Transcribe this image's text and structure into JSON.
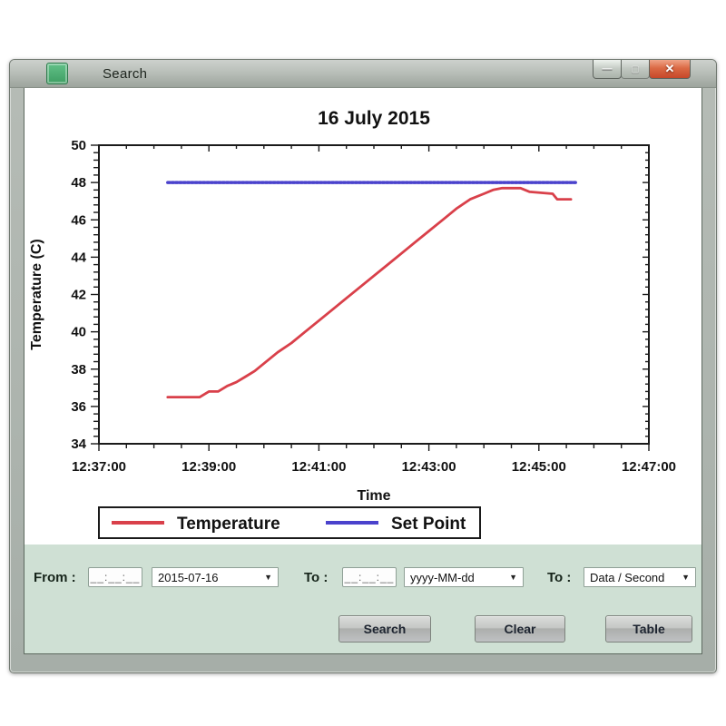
{
  "window": {
    "title": "Search"
  },
  "icons": {
    "minimize": "—",
    "maximize": "▢",
    "close": "✕",
    "dropdown_arrow": "▼"
  },
  "colors": {
    "window_bg": "#cfe0d4",
    "temperature_line": "#d9404a",
    "set_point_line": "#4a42cc",
    "close_button": "#c64729"
  },
  "chart_data": {
    "type": "line",
    "title": "16 July 2015",
    "xlabel": "Time",
    "ylabel": "Temperature (C)",
    "ylim": [
      34,
      50
    ],
    "y_tick_step": 2,
    "y_minor_step": 0.4,
    "x_range": [
      "12:37:00",
      "12:47:00"
    ],
    "x_ticks": [
      "12:37:00",
      "12:39:00",
      "12:41:00",
      "12:43:00",
      "12:45:00",
      "12:47:00"
    ],
    "x_minor_step_sec": 30,
    "grid": false,
    "legend_position": "bottom",
    "series": [
      {
        "name": "Temperature",
        "color": "#d9404a",
        "style": "solid",
        "points": [
          [
            "12:38:15",
            36.5
          ],
          [
            "12:38:50",
            36.5
          ],
          [
            "12:39:00",
            36.8
          ],
          [
            "12:39:10",
            36.8
          ],
          [
            "12:39:20",
            37.1
          ],
          [
            "12:39:30",
            37.3
          ],
          [
            "12:39:40",
            37.6
          ],
          [
            "12:39:50",
            37.9
          ],
          [
            "12:40:00",
            38.3
          ],
          [
            "12:40:15",
            38.9
          ],
          [
            "12:40:30",
            39.4
          ],
          [
            "12:40:45",
            40.0
          ],
          [
            "12:41:00",
            40.6
          ],
          [
            "12:41:15",
            41.2
          ],
          [
            "12:41:30",
            41.8
          ],
          [
            "12:41:45",
            42.4
          ],
          [
            "12:42:00",
            43.0
          ],
          [
            "12:42:15",
            43.6
          ],
          [
            "12:42:30",
            44.2
          ],
          [
            "12:42:45",
            44.8
          ],
          [
            "12:43:00",
            45.4
          ],
          [
            "12:43:15",
            46.0
          ],
          [
            "12:43:30",
            46.6
          ],
          [
            "12:43:45",
            47.1
          ],
          [
            "12:44:00",
            47.4
          ],
          [
            "12:44:10",
            47.6
          ],
          [
            "12:44:20",
            47.7
          ],
          [
            "12:44:40",
            47.7
          ],
          [
            "12:44:50",
            47.5
          ],
          [
            "12:45:15",
            47.4
          ],
          [
            "12:45:20",
            47.1
          ],
          [
            "12:45:35",
            47.1
          ]
        ]
      },
      {
        "name": "Set Point",
        "color": "#4a42cc",
        "style": "dotted",
        "points": [
          [
            "12:38:15",
            48.0
          ],
          [
            "12:45:40",
            48.0
          ]
        ]
      }
    ]
  },
  "form": {
    "from_label": "From :",
    "from_time_value": "__:__:__",
    "from_date_value": "2015-07-16",
    "to_label": "To :",
    "to_time_value": "__:__:__",
    "to_format_value": "yyyy-MM-dd",
    "interval_label": "To :",
    "interval_value": "Data / Second",
    "search_button": "Search",
    "clear_button": "Clear",
    "table_button": "Table"
  }
}
